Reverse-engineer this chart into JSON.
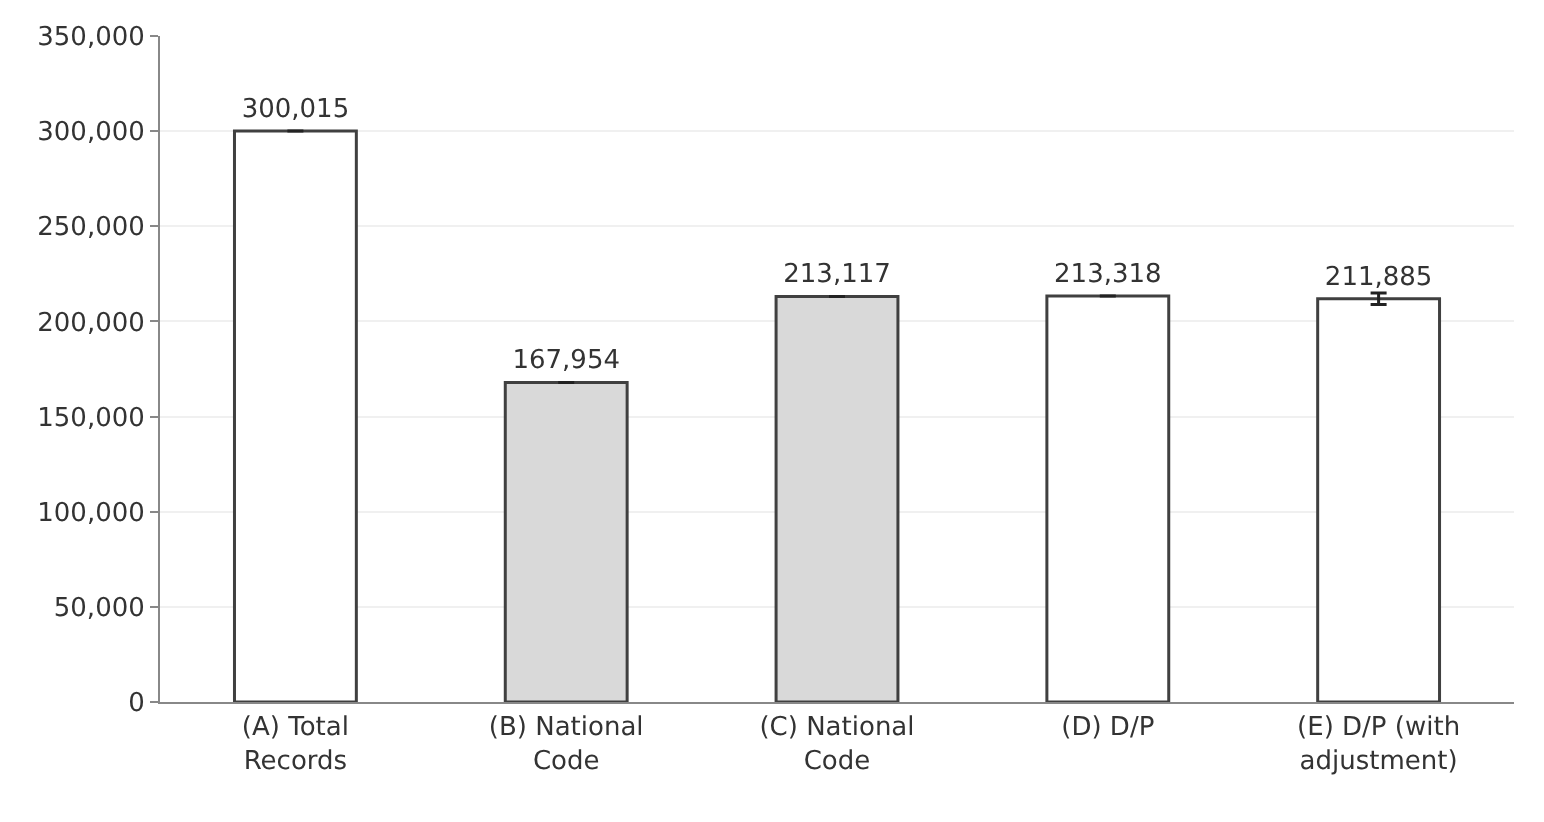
{
  "chart_data": {
    "type": "bar",
    "categories": [
      "(A) Total\nRecords",
      "(B) National\nCode",
      "(C) National\nCode",
      "(D) D/P",
      "(E) D/P (with\nadjustment)"
    ],
    "values": [
      300015,
      167954,
      213117,
      213318,
      211885
    ],
    "colors": [
      "#ffffff",
      "#d9d9d9",
      "#d9d9d9",
      "#ffffff",
      "#ffffff"
    ],
    "errors": [
      null,
      null,
      null,
      null,
      3000
    ],
    "value_labels": [
      "300,015",
      "167,954",
      "213,117",
      "213,318",
      "211,885"
    ],
    "ylim": [
      0,
      350000
    ],
    "yticks": [
      {
        "value": 0,
        "label": "0"
      },
      {
        "value": 50000,
        "label": "50,000"
      },
      {
        "value": 100000,
        "label": "100,000"
      },
      {
        "value": 150000,
        "label": "150,000"
      },
      {
        "value": 200000,
        "label": "200,000"
      },
      {
        "value": 250000,
        "label": "250,000"
      },
      {
        "value": 300000,
        "label": "300,000"
      },
      {
        "value": 350000,
        "label": "350,000"
      }
    ],
    "grid": "y"
  }
}
